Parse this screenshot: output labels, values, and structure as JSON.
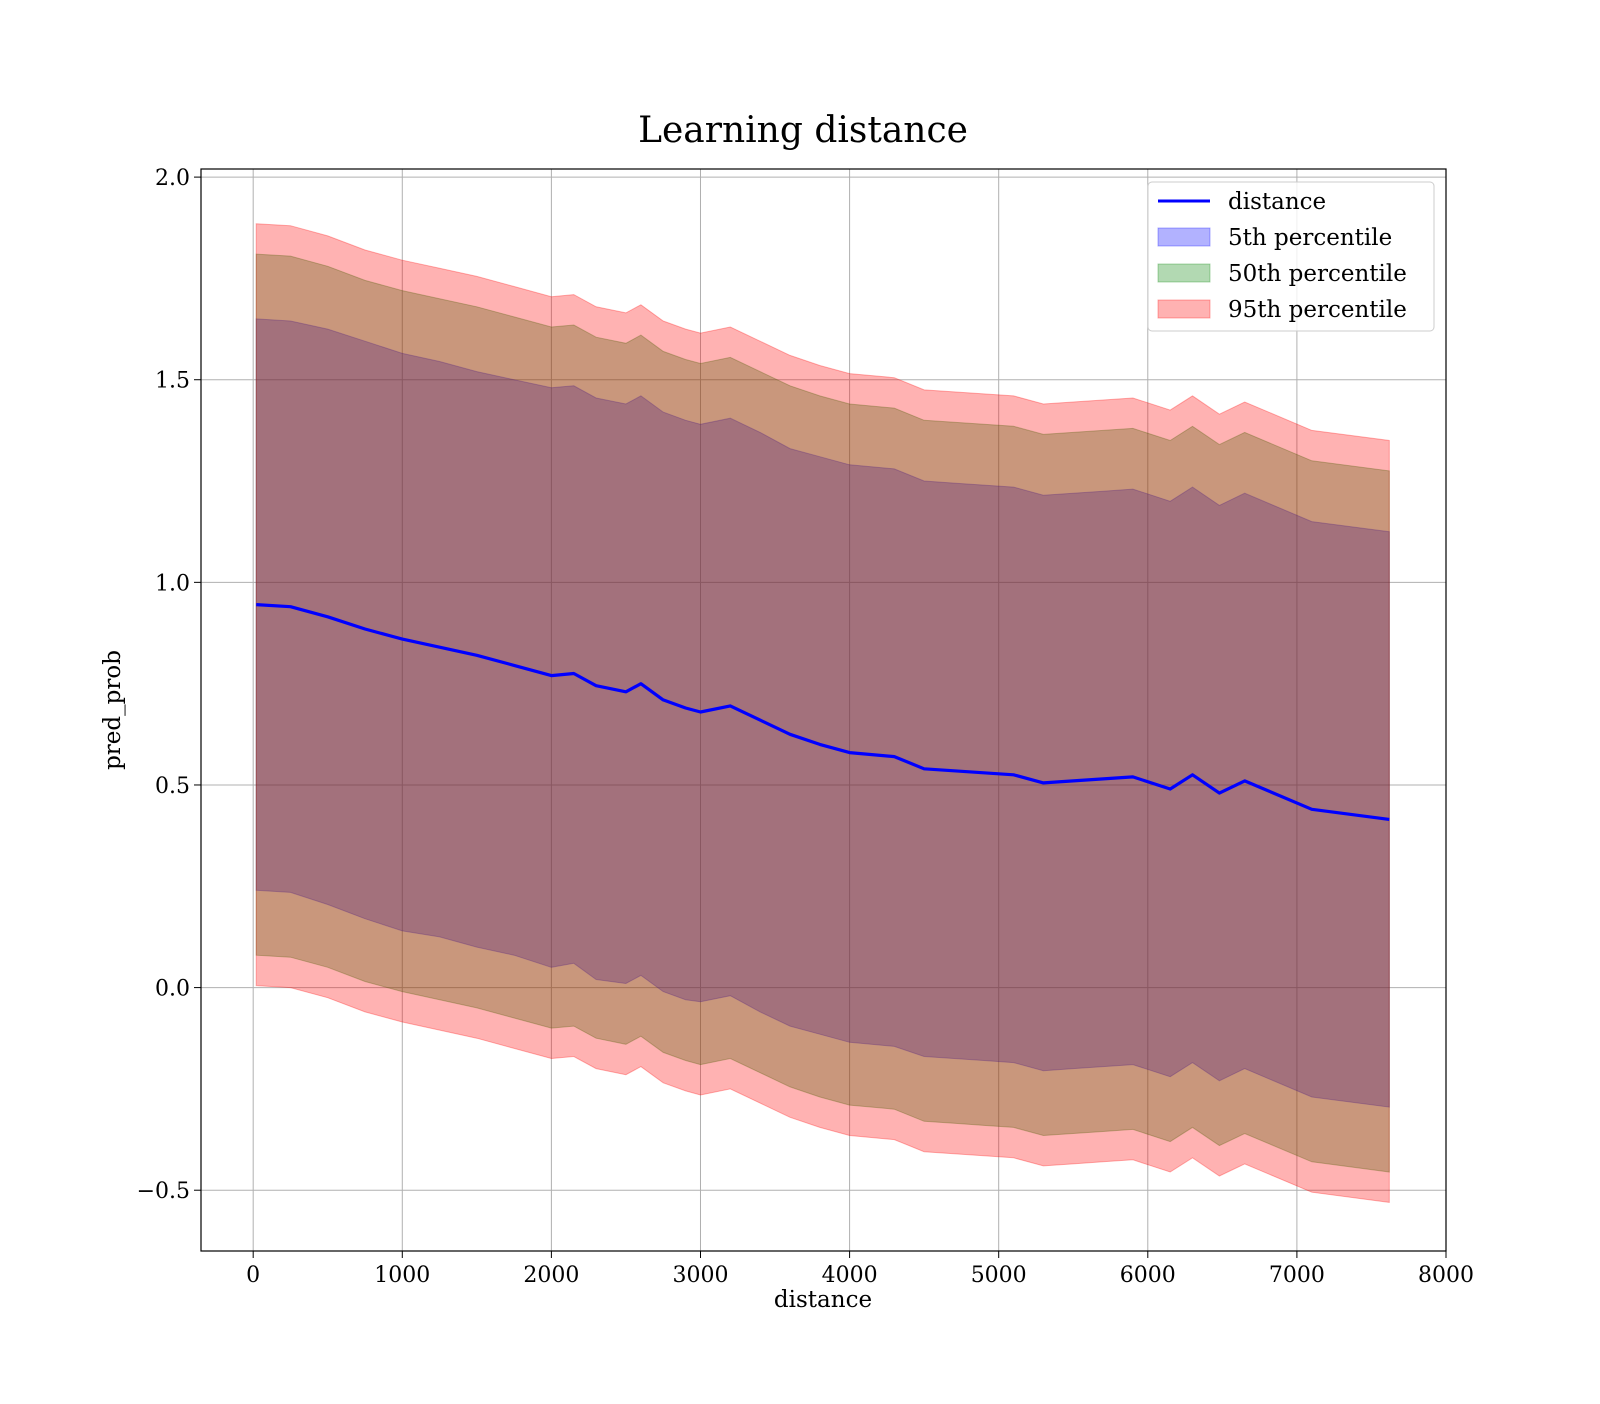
{
  "chart_data": {
    "type": "area",
    "title": "Learning distance",
    "xlabel": "distance",
    "ylabel": "pred_prob",
    "xlim": [
      -350,
      8000
    ],
    "ylim": [
      -0.65,
      2.02
    ],
    "xticks": [
      0,
      1000,
      2000,
      3000,
      4000,
      5000,
      6000,
      7000,
      8000
    ],
    "xtick_labels": [
      "0",
      "1000",
      "2000",
      "3000",
      "4000",
      "5000",
      "6000",
      "7000",
      "8000"
    ],
    "yticks": [
      -0.5,
      0.0,
      0.5,
      1.0,
      1.5,
      2.0
    ],
    "ytick_labels": [
      "−0.5",
      "0.0",
      "0.5",
      "1.0",
      "1.5",
      "2.0"
    ],
    "grid": true,
    "legend_position": "top-right",
    "colors": {
      "line": "#0000ff",
      "band_5th": "#0000ff",
      "band_50th": "#008000",
      "band_95th": "#ff0000"
    },
    "x": [
      20,
      250,
      500,
      750,
      1000,
      1250,
      1500,
      1750,
      2000,
      2150,
      2300,
      2500,
      2600,
      2750,
      2900,
      3000,
      3200,
      3400,
      3600,
      3800,
      4000,
      4300,
      4500,
      4700,
      4900,
      5100,
      5300,
      5500,
      5700,
      5900,
      6150,
      6300,
      6480,
      6650,
      7100,
      7620
    ],
    "series": [
      {
        "name": "distance",
        "kind": "line",
        "values": [
          0.945,
          0.94,
          0.915,
          0.885,
          0.86,
          0.84,
          0.82,
          0.795,
          0.77,
          0.775,
          0.745,
          0.73,
          0.75,
          0.71,
          0.69,
          0.68,
          0.695,
          0.66,
          0.625,
          0.6,
          0.58,
          0.57,
          0.54,
          0.535,
          0.53,
          0.525,
          0.505,
          0.51,
          0.515,
          0.52,
          0.49,
          0.525,
          0.48,
          0.51,
          0.44,
          0.415
        ]
      },
      {
        "name": "5th percentile",
        "kind": "band",
        "lower": [
          0.24,
          0.235,
          0.205,
          0.17,
          0.14,
          0.125,
          0.1,
          0.08,
          0.05,
          0.06,
          0.02,
          0.01,
          0.03,
          -0.01,
          -0.03,
          -0.035,
          -0.02,
          -0.06,
          -0.095,
          -0.115,
          -0.135,
          -0.145,
          -0.17,
          -0.175,
          -0.18,
          -0.185,
          -0.205,
          -0.2,
          -0.195,
          -0.19,
          -0.22,
          -0.185,
          -0.23,
          -0.2,
          -0.27,
          -0.295
        ],
        "upper": [
          1.65,
          1.645,
          1.625,
          1.595,
          1.565,
          1.545,
          1.52,
          1.5,
          1.48,
          1.485,
          1.455,
          1.44,
          1.46,
          1.42,
          1.4,
          1.39,
          1.405,
          1.37,
          1.33,
          1.31,
          1.29,
          1.28,
          1.25,
          1.245,
          1.24,
          1.235,
          1.215,
          1.22,
          1.225,
          1.23,
          1.2,
          1.235,
          1.19,
          1.22,
          1.15,
          1.125
        ]
      },
      {
        "name": "50th percentile",
        "kind": "band",
        "lower": [
          0.08,
          0.075,
          0.05,
          0.015,
          -0.01,
          -0.03,
          -0.05,
          -0.075,
          -0.1,
          -0.095,
          -0.125,
          -0.14,
          -0.12,
          -0.16,
          -0.18,
          -0.19,
          -0.175,
          -0.21,
          -0.245,
          -0.27,
          -0.29,
          -0.3,
          -0.33,
          -0.335,
          -0.34,
          -0.345,
          -0.365,
          -0.36,
          -0.355,
          -0.35,
          -0.38,
          -0.345,
          -0.39,
          -0.36,
          -0.43,
          -0.455
        ],
        "upper": [
          1.81,
          1.805,
          1.78,
          1.745,
          1.72,
          1.7,
          1.68,
          1.655,
          1.63,
          1.635,
          1.605,
          1.59,
          1.61,
          1.57,
          1.55,
          1.54,
          1.555,
          1.52,
          1.485,
          1.46,
          1.44,
          1.43,
          1.4,
          1.395,
          1.39,
          1.385,
          1.365,
          1.37,
          1.375,
          1.38,
          1.35,
          1.385,
          1.34,
          1.37,
          1.3,
          1.275
        ]
      },
      {
        "name": "95th percentile",
        "kind": "band",
        "lower": [
          0.005,
          0.0,
          -0.025,
          -0.06,
          -0.085,
          -0.105,
          -0.125,
          -0.15,
          -0.175,
          -0.17,
          -0.2,
          -0.215,
          -0.195,
          -0.235,
          -0.255,
          -0.265,
          -0.25,
          -0.285,
          -0.32,
          -0.345,
          -0.365,
          -0.375,
          -0.405,
          -0.41,
          -0.415,
          -0.42,
          -0.44,
          -0.435,
          -0.43,
          -0.425,
          -0.455,
          -0.42,
          -0.465,
          -0.435,
          -0.505,
          -0.53
        ],
        "upper": [
          1.885,
          1.88,
          1.855,
          1.82,
          1.795,
          1.775,
          1.755,
          1.73,
          1.705,
          1.71,
          1.68,
          1.665,
          1.685,
          1.645,
          1.625,
          1.615,
          1.63,
          1.595,
          1.56,
          1.535,
          1.515,
          1.505,
          1.475,
          1.47,
          1.465,
          1.46,
          1.44,
          1.445,
          1.45,
          1.455,
          1.425,
          1.46,
          1.415,
          1.445,
          1.375,
          1.35
        ]
      }
    ]
  }
}
